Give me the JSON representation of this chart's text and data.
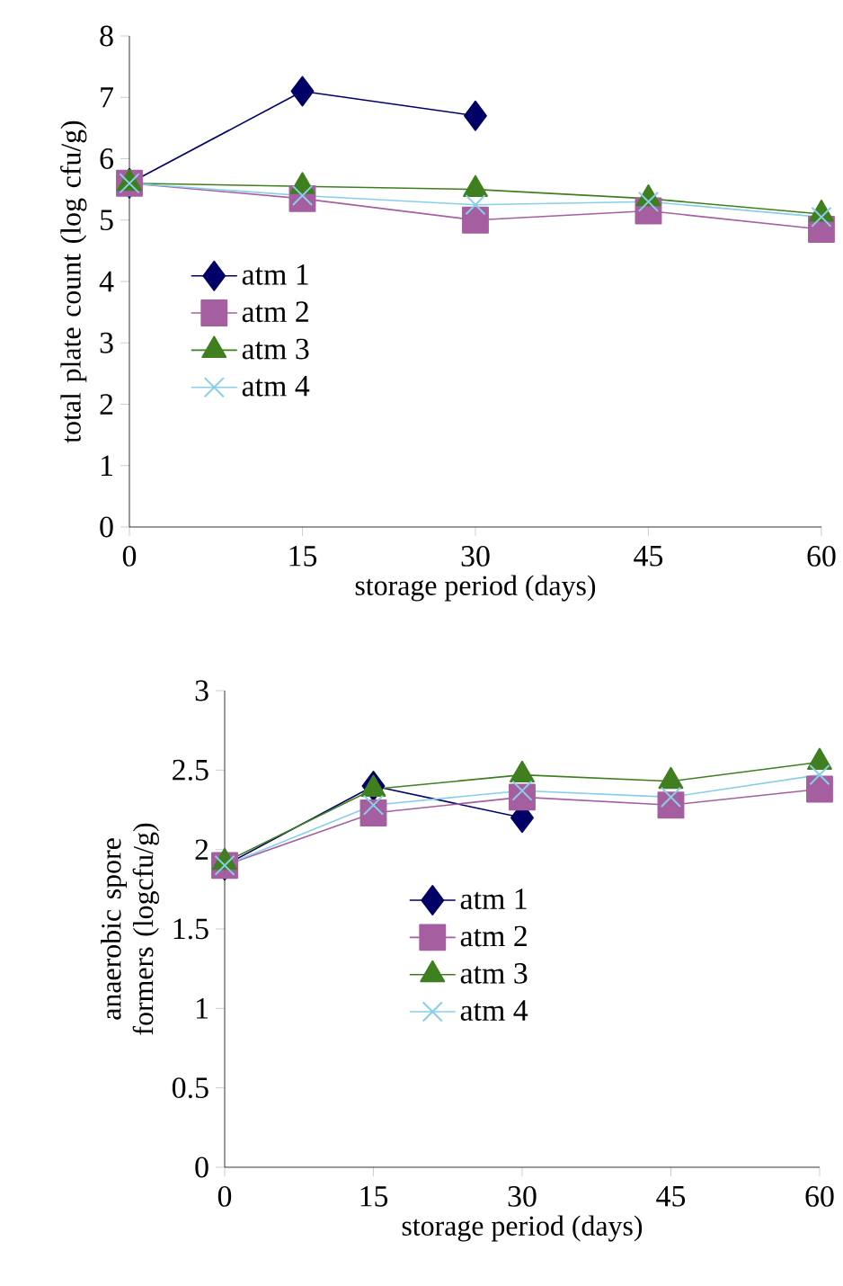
{
  "chart_data": [
    {
      "type": "line",
      "xlabel": "storage period (days)",
      "ylabel": "total plate count (log cfu/g)",
      "x": [
        0,
        15,
        30,
        45,
        60
      ],
      "xlim": [
        0,
        60
      ],
      "xticks": [
        0,
        15,
        30,
        45,
        60
      ],
      "ylim": [
        0,
        8
      ],
      "yticks": [
        0,
        1,
        2,
        3,
        4,
        5,
        6,
        7,
        8
      ],
      "grid": false,
      "legend": "left",
      "line_style": "solid",
      "series": [
        {
          "name": "atm 1",
          "color": "#000066",
          "marker": "diamond",
          "values": [
            5.6,
            7.1,
            6.7,
            null,
            null
          ]
        },
        {
          "name": "atm 2",
          "color": "#a55fa0",
          "marker": "square",
          "values": [
            5.6,
            5.35,
            5.0,
            5.15,
            4.85
          ]
        },
        {
          "name": "atm 3",
          "color": "#3f7f1f",
          "marker": "triangle",
          "values": [
            5.6,
            5.55,
            5.5,
            5.35,
            5.1
          ]
        },
        {
          "name": "atm 4",
          "color": "#87cfe8",
          "marker": "cross",
          "values": [
            5.6,
            5.4,
            5.25,
            5.3,
            5.05
          ]
        }
      ]
    },
    {
      "type": "line",
      "xlabel": "storage period (days)",
      "ylabel": "anaerobic spore formers (logcfu/g)",
      "x": [
        0,
        15,
        30,
        45,
        60
      ],
      "xlim": [
        0,
        60
      ],
      "xticks": [
        0,
        15,
        30,
        45,
        60
      ],
      "ylim": [
        0,
        3
      ],
      "yticks": [
        0,
        0.5,
        1,
        1.5,
        2,
        2.5,
        3
      ],
      "grid": false,
      "legend": "center",
      "line_style": "solid",
      "series": [
        {
          "name": "atm 1",
          "color": "#000066",
          "marker": "diamond",
          "values": [
            1.9,
            2.4,
            2.2,
            null,
            null
          ]
        },
        {
          "name": "atm 2",
          "color": "#a55fa0",
          "marker": "square",
          "values": [
            1.9,
            2.23,
            2.33,
            2.28,
            2.38
          ]
        },
        {
          "name": "atm 3",
          "color": "#3f7f1f",
          "marker": "triangle",
          "values": [
            1.92,
            2.38,
            2.47,
            2.43,
            2.55
          ]
        },
        {
          "name": "atm 4",
          "color": "#87cfe8",
          "marker": "cross",
          "values": [
            1.9,
            2.28,
            2.37,
            2.33,
            2.47
          ]
        }
      ]
    }
  ]
}
